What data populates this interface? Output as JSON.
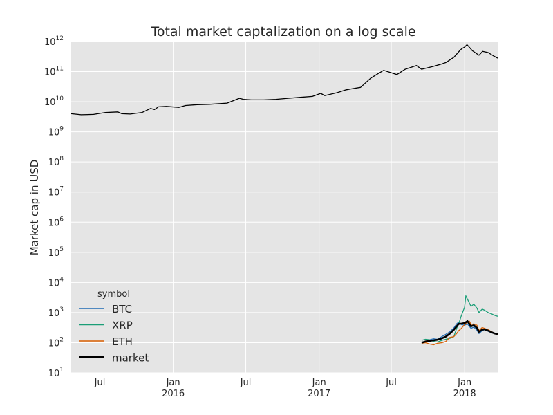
{
  "chart_data": {
    "type": "line",
    "title": "Total market captalization on a log scale",
    "xlabel": "",
    "ylabel": "Market cap in USD",
    "yscale": "log",
    "ylim": [
      10,
      1000000000000
    ],
    "xlim": [
      "2015-04-20",
      "2018-03-25"
    ],
    "grid": true,
    "background": "#e5e5e5",
    "x_ticks": [
      {
        "date": "2015-07-01",
        "label": "Jul",
        "year": ""
      },
      {
        "date": "2016-01-01",
        "label": "Jan",
        "year": "2016"
      },
      {
        "date": "2016-07-01",
        "label": "Jul",
        "year": ""
      },
      {
        "date": "2017-01-01",
        "label": "Jan",
        "year": "2017"
      },
      {
        "date": "2017-07-01",
        "label": "Jul",
        "year": ""
      },
      {
        "date": "2018-01-01",
        "label": "Jan",
        "year": "2018"
      }
    ],
    "y_ticks": [
      {
        "value": 10,
        "base": "10",
        "exp": "1"
      },
      {
        "value": 100,
        "base": "10",
        "exp": "2"
      },
      {
        "value": 1000,
        "base": "10",
        "exp": "3"
      },
      {
        "value": 10000,
        "base": "10",
        "exp": "4"
      },
      {
        "value": 100000,
        "base": "10",
        "exp": "5"
      },
      {
        "value": 1000000,
        "base": "10",
        "exp": "6"
      },
      {
        "value": 10000000,
        "base": "10",
        "exp": "7"
      },
      {
        "value": 100000000,
        "base": "10",
        "exp": "8"
      },
      {
        "value": 1000000000,
        "base": "10",
        "exp": "9"
      },
      {
        "value": 10000000000,
        "base": "10",
        "exp": "10"
      },
      {
        "value": 100000000000,
        "base": "10",
        "exp": "11"
      },
      {
        "value": 1000000000000,
        "base": "10",
        "exp": "12"
      }
    ],
    "legend": {
      "title": "symbol",
      "placement": "lower-left"
    },
    "series": [
      {
        "name": "BTC",
        "color": "#1f6bb3",
        "line_width": 1.3,
        "x": [
          "2017-09-15",
          "2017-09-25",
          "2017-10-05",
          "2017-10-15",
          "2017-10-25",
          "2017-11-05",
          "2017-11-15",
          "2017-11-25",
          "2017-12-05",
          "2017-12-12",
          "2017-12-17",
          "2017-12-24",
          "2018-01-01",
          "2018-01-08",
          "2018-01-17",
          "2018-01-24",
          "2018-02-01",
          "2018-02-06",
          "2018-02-14",
          "2018-02-20",
          "2018-03-01",
          "2018-03-10",
          "2018-03-18",
          "2018-03-25"
        ],
        "y": [
          100,
          110,
          125,
          135,
          130,
          160,
          190,
          230,
          310,
          420,
          480,
          400,
          380,
          420,
          300,
          330,
          260,
          200,
          250,
          270,
          240,
          210,
          200,
          190
        ]
      },
      {
        "name": "XRP",
        "color": "#1b9e77",
        "line_width": 1.3,
        "x": [
          "2017-09-15",
          "2017-09-25",
          "2017-10-05",
          "2017-10-15",
          "2017-10-25",
          "2017-11-05",
          "2017-11-15",
          "2017-11-25",
          "2017-12-05",
          "2017-12-12",
          "2017-12-17",
          "2017-12-24",
          "2018-01-01",
          "2018-01-04",
          "2018-01-08",
          "2018-01-17",
          "2018-01-24",
          "2018-02-01",
          "2018-02-06",
          "2018-02-14",
          "2018-02-20",
          "2018-03-01",
          "2018-03-10",
          "2018-03-18",
          "2018-03-25"
        ],
        "y": [
          120,
          130,
          125,
          110,
          105,
          120,
          130,
          140,
          160,
          300,
          420,
          800,
          1500,
          3600,
          2800,
          1600,
          1900,
          1400,
          1000,
          1300,
          1200,
          1000,
          900,
          800,
          750
        ]
      },
      {
        "name": "ETH",
        "color": "#d95f02",
        "line_width": 1.3,
        "x": [
          "2017-09-15",
          "2017-09-25",
          "2017-10-05",
          "2017-10-15",
          "2017-10-25",
          "2017-11-05",
          "2017-11-15",
          "2017-11-25",
          "2017-12-05",
          "2017-12-12",
          "2017-12-17",
          "2017-12-24",
          "2018-01-01",
          "2018-01-08",
          "2018-01-13",
          "2018-01-17",
          "2018-01-24",
          "2018-02-01",
          "2018-02-06",
          "2018-02-14",
          "2018-02-20",
          "2018-03-01",
          "2018-03-10",
          "2018-03-18",
          "2018-03-25"
        ],
        "y": [
          95,
          100,
          90,
          85,
          95,
          100,
          110,
          150,
          160,
          200,
          250,
          300,
          400,
          480,
          520,
          400,
          420,
          380,
          250,
          320,
          300,
          270,
          230,
          200,
          185
        ]
      },
      {
        "name": "market",
        "color": "#000000",
        "line_width": 2.6,
        "x": [
          "2017-09-15",
          "2017-09-25",
          "2017-10-05",
          "2017-10-15",
          "2017-10-25",
          "2017-11-05",
          "2017-11-15",
          "2017-11-25",
          "2017-12-05",
          "2017-12-12",
          "2017-12-17",
          "2017-12-24",
          "2018-01-01",
          "2018-01-08",
          "2018-01-17",
          "2018-01-24",
          "2018-02-01",
          "2018-02-06",
          "2018-02-14",
          "2018-02-20",
          "2018-03-01",
          "2018-03-10",
          "2018-03-18",
          "2018-03-25"
        ],
        "y": [
          100,
          110,
          115,
          120,
          125,
          140,
          160,
          200,
          270,
          350,
          420,
          430,
          450,
          520,
          350,
          380,
          310,
          230,
          270,
          280,
          250,
          220,
          200,
          190
        ]
      },
      {
        "name": "",
        "color": "#000000",
        "line_width": 1.3,
        "x": [
          "2015-04-20",
          "2015-05-15",
          "2015-06-15",
          "2015-07-15",
          "2015-08-15",
          "2015-08-25",
          "2015-09-15",
          "2015-10-15",
          "2015-11-05",
          "2015-11-15",
          "2015-11-25",
          "2015-12-15",
          "2016-01-15",
          "2016-02-01",
          "2016-03-01",
          "2016-04-01",
          "2016-05-15",
          "2016-06-15",
          "2016-06-25",
          "2016-07-15",
          "2016-08-15",
          "2016-09-15",
          "2016-10-15",
          "2016-11-15",
          "2016-12-15",
          "2017-01-05",
          "2017-01-15",
          "2017-02-15",
          "2017-03-10",
          "2017-03-25",
          "2017-04-15",
          "2017-05-10",
          "2017-05-25",
          "2017-06-12",
          "2017-07-15",
          "2017-08-05",
          "2017-09-02",
          "2017-09-15",
          "2017-10-15",
          "2017-11-05",
          "2017-11-15",
          "2017-12-05",
          "2017-12-20",
          "2017-12-25",
          "2018-01-01",
          "2018-01-07",
          "2018-01-15",
          "2018-01-20",
          "2018-02-06",
          "2018-02-15",
          "2018-03-01",
          "2018-03-15",
          "2018-03-25"
        ],
        "y": [
          4000000000,
          3700000000,
          3800000000,
          4400000000,
          4600000000,
          4000000000,
          3900000000,
          4400000000,
          6000000000,
          5500000000,
          6800000000,
          7000000000,
          6500000000,
          7500000000,
          8000000000,
          8200000000,
          9000000000,
          13000000000,
          12000000000,
          11500000000,
          11500000000,
          12000000000,
          13000000000,
          14000000000,
          15000000000,
          19000000000,
          16000000000,
          20000000000,
          25000000000,
          27000000000,
          30000000000,
          60000000000,
          80000000000,
          110000000000,
          80000000000,
          120000000000,
          160000000000,
          120000000000,
          150000000000,
          180000000000,
          200000000000,
          300000000000,
          500000000000,
          580000000000,
          650000000000,
          790000000000,
          600000000000,
          500000000000,
          350000000000,
          470000000000,
          430000000000,
          330000000000,
          280000000000
        ]
      }
    ]
  }
}
